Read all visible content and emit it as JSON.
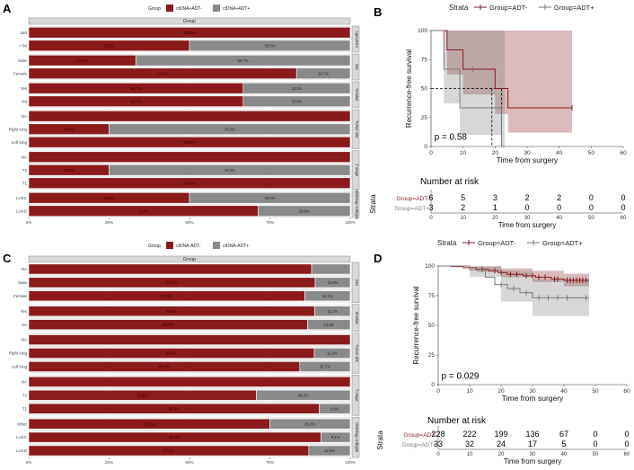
{
  "panel_labels": [
    "A",
    "B",
    "C",
    "D"
  ],
  "chart_data": [
    {
      "id": "A",
      "type": "bar",
      "subtype": "stacked-horizontal-percent",
      "legend_title": "Group",
      "legend": [
        {
          "name": "ctDNA+ADT-",
          "color": "#8b1a1a"
        },
        {
          "name": "ctDNA+ADT+",
          "color": "#8a8a8a"
        }
      ],
      "strip_label": "Group",
      "x_ticks": [
        "0%",
        "25%",
        "50%",
        "75%",
        "100%"
      ],
      "xlim": [
        0,
        100
      ],
      "facets": [
        {
          "label": "Age/years",
          "rows": [
            {
              "label": "≥60",
              "v1": 100.0,
              "v1_text": "100.0%",
              "v2": 0,
              "v2_text": ""
            },
            {
              "label": "< 60",
              "v1": 50.0,
              "v1_text": "50.0%",
              "v2": 50.0,
              "v2_text": "50.0%"
            }
          ]
        },
        {
          "label": "Sex",
          "rows": [
            {
              "label": "Male",
              "v1": 33.3,
              "v1_text": "33.3%",
              "v2": 66.7,
              "v2_text": "66.7%"
            },
            {
              "label": "Female",
              "v1": 83.3,
              "v1_text": "83.3%",
              "v2": 16.7,
              "v2_text": "16.7%"
            }
          ]
        },
        {
          "label": "Smoker",
          "rows": [
            {
              "label": "Yes",
              "v1": 66.7,
              "v1_text": "66.7%",
              "v2": 33.3,
              "v2_text": "33.3%"
            },
            {
              "label": "No",
              "v1": 66.7,
              "v1_text": "66.7%",
              "v2": 33.3,
              "v2_text": "33.3%"
            }
          ]
        },
        {
          "label": "Tumor site",
          "rows": [
            {
              "label": "NA",
              "v1": 100.0,
              "v1_text": "",
              "v2": 0,
              "v2_text": ""
            },
            {
              "label": "Right lung",
              "v1": 25.0,
              "v1_text": "25.0%",
              "v2": 75.0,
              "v2_text": "75.0%"
            },
            {
              "label": "Left lung",
              "v1": 100.0,
              "v1_text": "100.0%",
              "v2": 0,
              "v2_text": ""
            }
          ]
        },
        {
          "label": "T stage",
          "rows": [
            {
              "label": "NA",
              "v1": 100.0,
              "v1_text": "",
              "v2": 0,
              "v2_text": ""
            },
            {
              "label": "T2",
              "v1": 25.0,
              "v1_text": "25.0%",
              "v2": 75.0,
              "v2_text": "75.0%"
            },
            {
              "label": "T1",
              "v1": 100.0,
              "v1_text": "100.0%",
              "v2": 0,
              "v2_text": ""
            }
          ]
        },
        {
          "label": "Histology subtype",
          "rows": [
            {
              "label": "LUSC",
              "v1": 50.0,
              "v1_text": "50.0%",
              "v2": 50.0,
              "v2_text": "50.0%"
            },
            {
              "label": "LUAD",
              "v1": 71.4,
              "v1_text": "71.4%",
              "v2": 28.6,
              "v2_text": "28.6%"
            }
          ]
        }
      ]
    },
    {
      "id": "B",
      "type": "line",
      "subtype": "kaplan-meier",
      "legend_title": "Strata",
      "series": [
        {
          "name": "Group=ADT-",
          "color": "#8b1a1a",
          "steps": [
            [
              0,
              100
            ],
            [
              5,
              100
            ],
            [
              5,
              83.3
            ],
            [
              10,
              83.3
            ],
            [
              10,
              66.7
            ],
            [
              20,
              66.7
            ],
            [
              20,
              50
            ],
            [
              24,
              50
            ],
            [
              24,
              33.3
            ],
            [
              44,
              33.3
            ]
          ],
          "upper": [
            [
              0,
              100
            ],
            [
              44,
              100
            ]
          ],
          "lower": [
            [
              0,
              100
            ],
            [
              5,
              62
            ],
            [
              10,
              45
            ],
            [
              20,
              28
            ],
            [
              24,
              12
            ],
            [
              44,
              12
            ]
          ],
          "censor": [
            [
              44,
              33.3
            ]
          ]
        },
        {
          "name": "Group=ADT+",
          "color": "#7a7a7a",
          "steps": [
            [
              0,
              100
            ],
            [
              4,
              100
            ],
            [
              4,
              66.7
            ],
            [
              9,
              66.7
            ],
            [
              9,
              33.3
            ],
            [
              22,
              33.3
            ],
            [
              22,
              0
            ],
            [
              23,
              0
            ]
          ],
          "upper": [
            [
              0,
              100
            ],
            [
              4,
              100
            ],
            [
              9,
              100
            ],
            [
              23,
              100
            ]
          ],
          "lower": [
            [
              0,
              100
            ],
            [
              4,
              37
            ],
            [
              9,
              10
            ],
            [
              22,
              0
            ],
            [
              23,
              0
            ]
          ],
          "censor": [
            [
              13,
              66.7
            ]
          ]
        }
      ],
      "median_lines": [
        19,
        22
      ],
      "pvalue": "p = 0.58",
      "ylabel": "Recurrence-free survival",
      "xlabel": "Time from surgery",
      "x_ticks": [
        0,
        10,
        20,
        30,
        40,
        50,
        60
      ],
      "y_ticks": [
        0,
        25,
        50,
        75,
        100
      ],
      "xlim": [
        0,
        60
      ],
      "ylim": [
        0,
        100
      ],
      "risk_table": {
        "title": "Number at risk",
        "ylabel": "Strata",
        "xlabel": "Time from surgery",
        "rows": [
          {
            "name": "Group=ADT-",
            "color": "#8b1a1a",
            "counts": [
              "6",
              "5",
              "3",
              "2",
              "2",
              "0",
              "0"
            ]
          },
          {
            "name": "Group=ADT+",
            "color": "#7a7a7a",
            "counts": [
              "3",
              "2",
              "1",
              "0",
              "0",
              "0",
              "0"
            ]
          }
        ]
      }
    },
    {
      "id": "C",
      "type": "bar",
      "subtype": "stacked-horizontal-percent",
      "legend_title": "Group",
      "legend": [
        {
          "name": "ctDNA-ADT-",
          "color": "#8b1a1a"
        },
        {
          "name": "ctDNA-ADT+",
          "color": "#8a8a8a"
        }
      ],
      "strip_label": "Group",
      "x_ticks": [
        "0%",
        "25%",
        "50%",
        "75%",
        "100%"
      ],
      "xlim": [
        0,
        100
      ],
      "facets": [
        {
          "label": "Sex",
          "rows": [
            {
              "label": "NA",
              "v1": 88.0,
              "v1_text": "",
              "v2": 12.0,
              "v2_text": ""
            },
            {
              "label": "Male",
              "v1": 89.1,
              "v1_text": "89.1%",
              "v2": 10.9,
              "v2_text": "10.9%"
            },
            {
              "label": "Female",
              "v1": 85.9,
              "v1_text": "85.9%",
              "v2": 14.1,
              "v2_text": "14.1%"
            }
          ]
        },
        {
          "label": "Smoker",
          "rows": [
            {
              "label": "Yes",
              "v1": 88.9,
              "v1_text": "88.9%",
              "v2": 11.1,
              "v2_text": "11.1%"
            },
            {
              "label": "No",
              "v1": 86.7,
              "v1_text": "86.7%",
              "v2": 13.3,
              "v2_text": "13.3%"
            }
          ]
        },
        {
          "label": "Tumor site",
          "rows": [
            {
              "label": "NA",
              "v1": 100.0,
              "v1_text": "",
              "v2": 0,
              "v2_text": ""
            },
            {
              "label": "Right lung",
              "v1": 88.8,
              "v1_text": "88.8%",
              "v2": 11.2,
              "v2_text": "11.2%"
            },
            {
              "label": "Left lung",
              "v1": 84.3,
              "v1_text": "84.3%",
              "v2": 15.7,
              "v2_text": "15.7%"
            }
          ]
        },
        {
          "label": "T stage",
          "rows": [
            {
              "label": "NA",
              "v1": 100.0,
              "v1_text": "",
              "v2": 0,
              "v2_text": ""
            },
            {
              "label": "T2",
              "v1": 70.8,
              "v1_text": "70.8%",
              "v2": 29.2,
              "v2_text": "29.2%"
            },
            {
              "label": "T1",
              "v1": 90.4,
              "v1_text": "90.4%",
              "v2": 9.6,
              "v2_text": "9.6%"
            }
          ]
        },
        {
          "label": "Histology subtype",
          "rows": [
            {
              "label": "Other",
              "v1": 75.0,
              "v1_text": "75.0%",
              "v2": 25.0,
              "v2_text": "25.0%"
            },
            {
              "label": "LUSC",
              "v1": 90.9,
              "v1_text": "90.9%",
              "v2": 9.1,
              "v2_text": "9.1%"
            },
            {
              "label": "LUAD",
              "v1": 87.1,
              "v1_text": "87.1%",
              "v2": 12.9,
              "v2_text": "12.9%"
            }
          ]
        }
      ]
    },
    {
      "id": "D",
      "type": "line",
      "subtype": "kaplan-meier",
      "legend_title": "Strata",
      "series": [
        {
          "name": "Group=ADT-",
          "color": "#8b1a1a",
          "steps": [
            [
              0,
              100
            ],
            [
              4,
              100
            ],
            [
              4,
              99.5
            ],
            [
              8,
              99.5
            ],
            [
              8,
              98.6
            ],
            [
              12,
              98.6
            ],
            [
              12,
              97.3
            ],
            [
              16,
              97.3
            ],
            [
              16,
              96
            ],
            [
              19,
              96
            ],
            [
              19,
              94.5
            ],
            [
              22,
              94.5
            ],
            [
              22,
              93
            ],
            [
              27,
              93
            ],
            [
              27,
              91.8
            ],
            [
              31,
              91.8
            ],
            [
              31,
              90.5
            ],
            [
              36,
              90.5
            ],
            [
              36,
              89
            ],
            [
              40,
              89
            ],
            [
              40,
              88
            ],
            [
              48,
              88
            ]
          ],
          "upper": [
            [
              0,
              100
            ],
            [
              12,
              99.5
            ],
            [
              20,
              98
            ],
            [
              30,
              96
            ],
            [
              40,
              93.5
            ],
            [
              48,
              93
            ]
          ],
          "lower": [
            [
              0,
              100
            ],
            [
              12,
              95
            ],
            [
              20,
              90.5
            ],
            [
              30,
              86.5
            ],
            [
              40,
              83
            ],
            [
              48,
              82.5
            ]
          ],
          "censor": [
            [
              14,
              97.3
            ],
            [
              18,
              96
            ],
            [
              20,
              94.5
            ],
            [
              23,
              93
            ],
            [
              25,
              93
            ],
            [
              28,
              91.8
            ],
            [
              30,
              91.8
            ],
            [
              32,
              90.5
            ],
            [
              34,
              90.5
            ],
            [
              37,
              89
            ],
            [
              38,
              89
            ],
            [
              41,
              88
            ],
            [
              42,
              88
            ],
            [
              43,
              88
            ],
            [
              44,
              88
            ],
            [
              45,
              88
            ],
            [
              46,
              88
            ],
            [
              47,
              88
            ]
          ]
        },
        {
          "name": "Group=ADT+",
          "color": "#7a7a7a",
          "steps": [
            [
              0,
              100
            ],
            [
              10,
              100
            ],
            [
              10,
              96.9
            ],
            [
              15,
              96.9
            ],
            [
              15,
              90.6
            ],
            [
              18,
              90.6
            ],
            [
              18,
              84.4
            ],
            [
              22,
              84.4
            ],
            [
              22,
              81
            ],
            [
              26,
              81
            ],
            [
              26,
              77.5
            ],
            [
              30,
              77.5
            ],
            [
              30,
              73.2
            ],
            [
              48,
              73.2
            ]
          ],
          "upper": [
            [
              0,
              100
            ],
            [
              10,
              100
            ],
            [
              20,
              96
            ],
            [
              30,
              89
            ],
            [
              48,
              89
            ]
          ],
          "lower": [
            [
              0,
              100
            ],
            [
              10,
              91
            ],
            [
              20,
              70
            ],
            [
              30,
              58
            ],
            [
              48,
              58
            ]
          ],
          "censor": [
            [
              20,
              84.4
            ],
            [
              24,
              81
            ],
            [
              28,
              77.5
            ],
            [
              32,
              73.2
            ],
            [
              35,
              73.2
            ],
            [
              38,
              73.2
            ],
            [
              41,
              73.2
            ],
            [
              47,
              73.2
            ]
          ]
        }
      ],
      "pvalue": "p = 0.029",
      "ylabel": "Recurrence-free survival",
      "xlabel": "Time from surgery",
      "x_ticks": [
        0,
        10,
        20,
        30,
        40,
        50,
        60
      ],
      "y_ticks": [
        0,
        25,
        50,
        75,
        100
      ],
      "xlim": [
        0,
        60
      ],
      "ylim": [
        0,
        100
      ],
      "risk_table": {
        "title": "Number at risk",
        "ylabel": "Strata",
        "xlabel": "Time from surgery",
        "rows": [
          {
            "name": "Group=ADT-",
            "color": "#8b1a1a",
            "counts": [
              "228",
              "222",
              "199",
              "136",
              "67",
              "0",
              "0"
            ]
          },
          {
            "name": "Group=ADT+",
            "color": "#7a7a7a",
            "counts": [
              "33",
              "32",
              "24",
              "17",
              "5",
              "0",
              "0"
            ]
          }
        ]
      }
    }
  ]
}
